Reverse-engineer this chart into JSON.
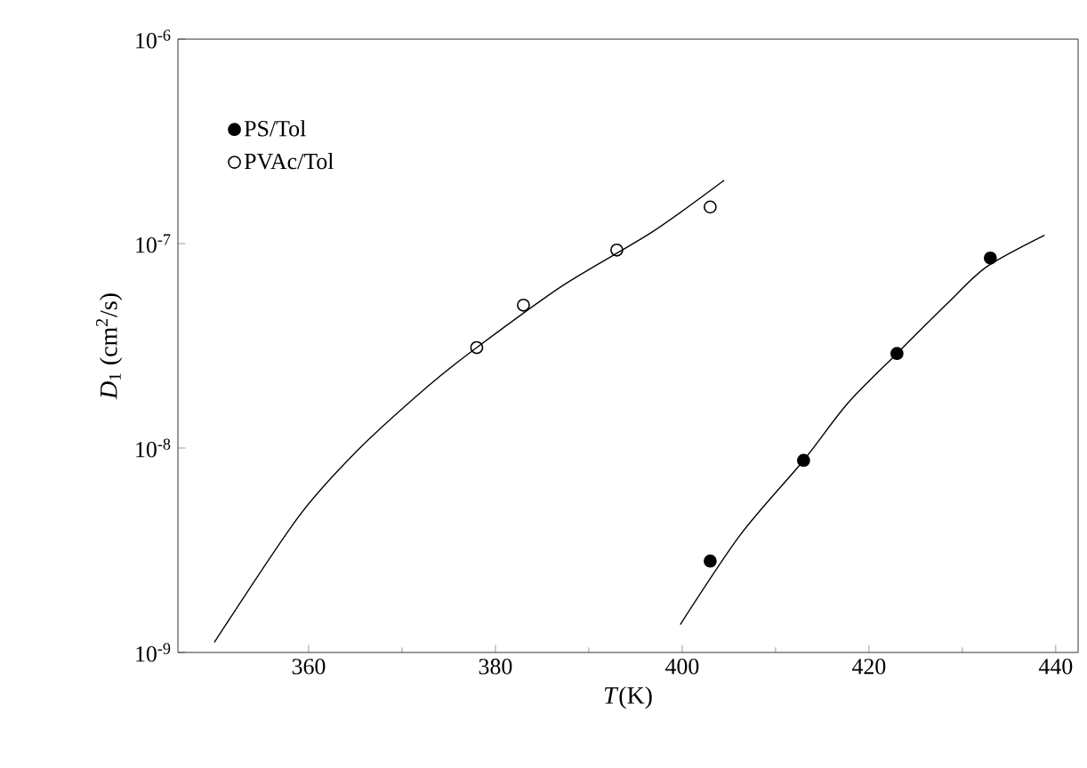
{
  "chart_data": {
    "type": "scatter",
    "xlabel": "*T*(K)",
    "ylabel": "*D*$_{1}$ (cm$^{2}$/s)",
    "log": "y",
    "xlim": [
      346,
      442.4
    ],
    "ylim": [
      1e-09,
      1e-06
    ],
    "xticks": [
      360,
      380,
      400,
      420,
      440
    ],
    "yticks": [
      {
        "value": 1e-09,
        "label": "10$^{-9}$"
      },
      {
        "value": 1e-08,
        "label": "10$^{-8}$"
      },
      {
        "value": 1e-07,
        "label": "10$^{-7}$"
      },
      {
        "value": 1e-06,
        "label": "10$^{-6}$"
      }
    ],
    "legend": "top left",
    "grid": false,
    "series": [
      {
        "name": "PS/Tol",
        "marker": "circle",
        "color": "#000000",
        "x": [
          403,
          413,
          423,
          433
        ],
        "values": [
          2.8e-09,
          8.7e-09,
          2.9e-08,
          8.5e-08
        ]
      },
      {
        "name": "PVAc/Tol",
        "marker": "open circle",
        "color": "#000000",
        "x": [
          378,
          383,
          393,
          403
        ],
        "values": [
          3.1e-08,
          5e-08,
          9.3e-08,
          1.51e-07
        ]
      },
      {
        "type": "line",
        "marker": "none",
        "color": "#000000",
        "x": [
          349.9,
          358.9,
          365.2,
          372.8,
          378,
          387.3,
          396.8,
          404.5
        ],
        "values": [
          1.12e-09,
          4.6e-09,
          9.7e-09,
          2.01e-08,
          3.1e-08,
          6.27e-08,
          1.14e-07,
          2.04e-07
        ]
      },
      {
        "type": "line",
        "marker": "none",
        "color": "#000000",
        "x": [
          399.8,
          406.3,
          413,
          417.7,
          423,
          428.4,
          432.6,
          438.8
        ],
        "values": [
          1.37e-09,
          3.8e-09,
          8.7e-09,
          1.65e-08,
          2.9e-08,
          5.1e-08,
          7.7e-08,
          1.1e-07
        ]
      }
    ]
  }
}
